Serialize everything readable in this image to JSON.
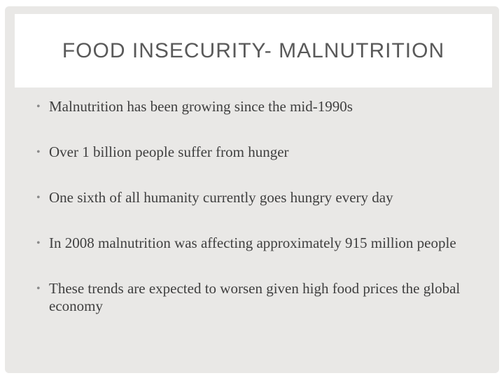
{
  "slide": {
    "title": "FOOD INSECURITY- MALNUTRITION",
    "bullet_glyph": "•",
    "bullets": [
      "Malnutrition has been growing since the mid-1990s",
      "Over 1 billion people suffer from hunger",
      "One sixth of all humanity currently goes hungry every day",
      "In 2008 malnutrition was affecting approximately 915 million people",
      "These trends are expected to worsen given high food prices the global economy"
    ]
  },
  "colors": {
    "slide_background": "#e9e8e6",
    "title_band": "#ffffff",
    "title_text": "#595959",
    "body_text": "#3f3f3f"
  }
}
